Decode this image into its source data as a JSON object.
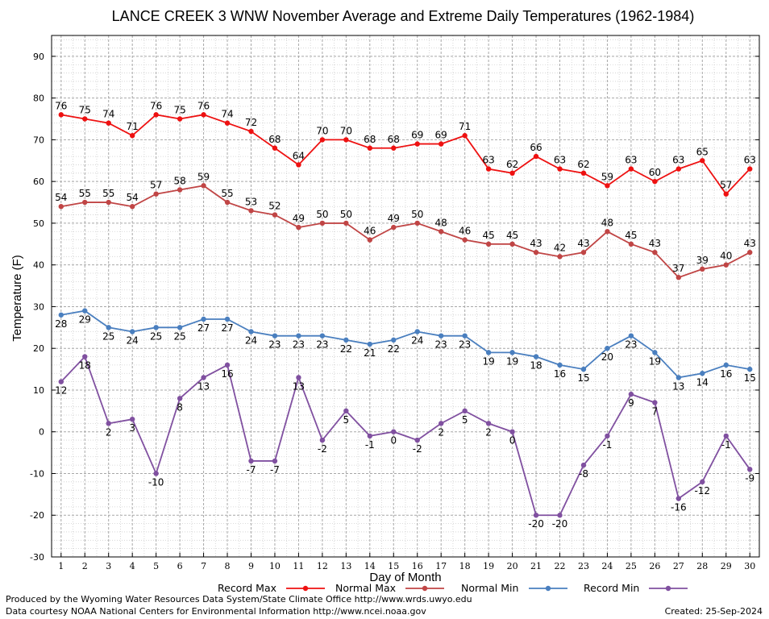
{
  "chart_data": {
    "type": "line",
    "title": "LANCE CREEK 3 WNW November Average and Extreme Daily Temperatures (1962-1984)",
    "xlabel": "Day of Month",
    "ylabel": "Temperature (F)",
    "x": [
      1,
      2,
      3,
      4,
      5,
      6,
      7,
      8,
      9,
      10,
      11,
      12,
      13,
      14,
      15,
      16,
      17,
      18,
      19,
      20,
      21,
      22,
      23,
      24,
      25,
      26,
      27,
      28,
      29,
      30
    ],
    "xlim": [
      0.6,
      30.4
    ],
    "ylim": [
      -30,
      95
    ],
    "yticks": [
      -30,
      -20,
      -10,
      0,
      10,
      20,
      30,
      40,
      50,
      60,
      70,
      80,
      90
    ],
    "grid": true,
    "legend_position": "bottom",
    "series": [
      {
        "name": "Record Max",
        "color": "#ee1111",
        "label_pos": "above",
        "values": [
          76,
          75,
          74,
          71,
          76,
          75,
          76,
          74,
          72,
          68,
          64,
          70,
          70,
          68,
          68,
          69,
          69,
          71,
          63,
          62,
          66,
          63,
          62,
          59,
          63,
          60,
          63,
          65,
          57,
          63
        ]
      },
      {
        "name": "Normal Max",
        "color": "#c04545",
        "label_pos": "above",
        "values": [
          54,
          55,
          55,
          54,
          57,
          58,
          59,
          55,
          53,
          52,
          49,
          50,
          50,
          46,
          49,
          50,
          48,
          46,
          45,
          45,
          43,
          42,
          43,
          48,
          45,
          43,
          37,
          39,
          40,
          43
        ]
      },
      {
        "name": "Normal Min",
        "color": "#4a7fbf",
        "label_pos": "below",
        "values": [
          28,
          29,
          25,
          24,
          25,
          25,
          27,
          27,
          24,
          23,
          23,
          23,
          22,
          21,
          22,
          24,
          23,
          23,
          19,
          19,
          18,
          16,
          15,
          20,
          23,
          19,
          13,
          14,
          16,
          15
        ]
      },
      {
        "name": "Record Min",
        "color": "#8050a0",
        "label_pos": "below",
        "values": [
          12,
          18,
          2,
          3,
          -10,
          8,
          13,
          16,
          -7,
          -7,
          13,
          -2,
          5,
          -1,
          0,
          -2,
          2,
          5,
          2,
          0,
          -20,
          -20,
          -8,
          -1,
          9,
          7,
          -16,
          -12,
          -1,
          -9
        ]
      }
    ]
  },
  "footer": {
    "produced_by": "Produced by the Wyoming Water Resources Data System/State Climate Office http://www.wrds.uwyo.edu",
    "courtesy": "Data courtesy NOAA National Centers for Environmental Information http://www.ncei.noaa.gov",
    "created": "Created:  25-Sep-2024"
  }
}
